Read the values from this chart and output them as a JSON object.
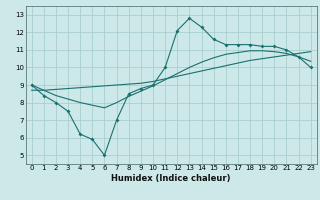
{
  "xlabel": "Humidex (Indice chaleur)",
  "bg_color": "#cce8e8",
  "grid_color": "#aacece",
  "line_color": "#1a7070",
  "xlim": [
    -0.5,
    23.5
  ],
  "ylim": [
    4.5,
    13.5
  ],
  "xticks": [
    0,
    1,
    2,
    3,
    4,
    5,
    6,
    7,
    8,
    9,
    10,
    11,
    12,
    13,
    14,
    15,
    16,
    17,
    18,
    19,
    20,
    21,
    22,
    23
  ],
  "yticks": [
    5,
    6,
    7,
    8,
    9,
    10,
    11,
    12,
    13
  ],
  "curve1_x": [
    0,
    1,
    2,
    3,
    4,
    5,
    6,
    7,
    8,
    9,
    10,
    11,
    12,
    13,
    14,
    15,
    16,
    17,
    18,
    19,
    20,
    21,
    22,
    23
  ],
  "curve1_y": [
    9.0,
    8.4,
    8.0,
    7.5,
    6.2,
    5.9,
    5.0,
    7.0,
    8.5,
    8.8,
    9.0,
    10.0,
    12.1,
    12.8,
    12.3,
    11.6,
    11.3,
    11.3,
    11.3,
    11.2,
    11.2,
    11.0,
    10.6,
    10.0
  ],
  "curve2_x": [
    0,
    1,
    2,
    3,
    4,
    5,
    6,
    7,
    8,
    9,
    10,
    11,
    12,
    13,
    14,
    15,
    16,
    17,
    18,
    19,
    20,
    21,
    22,
    23
  ],
  "curve2_y": [
    8.7,
    8.7,
    8.75,
    8.8,
    8.85,
    8.9,
    8.95,
    9.0,
    9.05,
    9.1,
    9.2,
    9.35,
    9.5,
    9.65,
    9.8,
    9.95,
    10.1,
    10.25,
    10.4,
    10.5,
    10.6,
    10.7,
    10.8,
    10.9
  ],
  "curve3_x": [
    0,
    1,
    2,
    3,
    4,
    5,
    6,
    7,
    8,
    9,
    10,
    11,
    12,
    13,
    14,
    15,
    16,
    17,
    18,
    19,
    20,
    21,
    22,
    23
  ],
  "curve3_y": [
    9.0,
    8.7,
    8.4,
    8.2,
    8.0,
    7.85,
    7.7,
    8.0,
    8.35,
    8.65,
    8.95,
    9.3,
    9.65,
    10.0,
    10.3,
    10.55,
    10.75,
    10.85,
    10.95,
    10.95,
    10.9,
    10.8,
    10.6,
    10.35
  ]
}
